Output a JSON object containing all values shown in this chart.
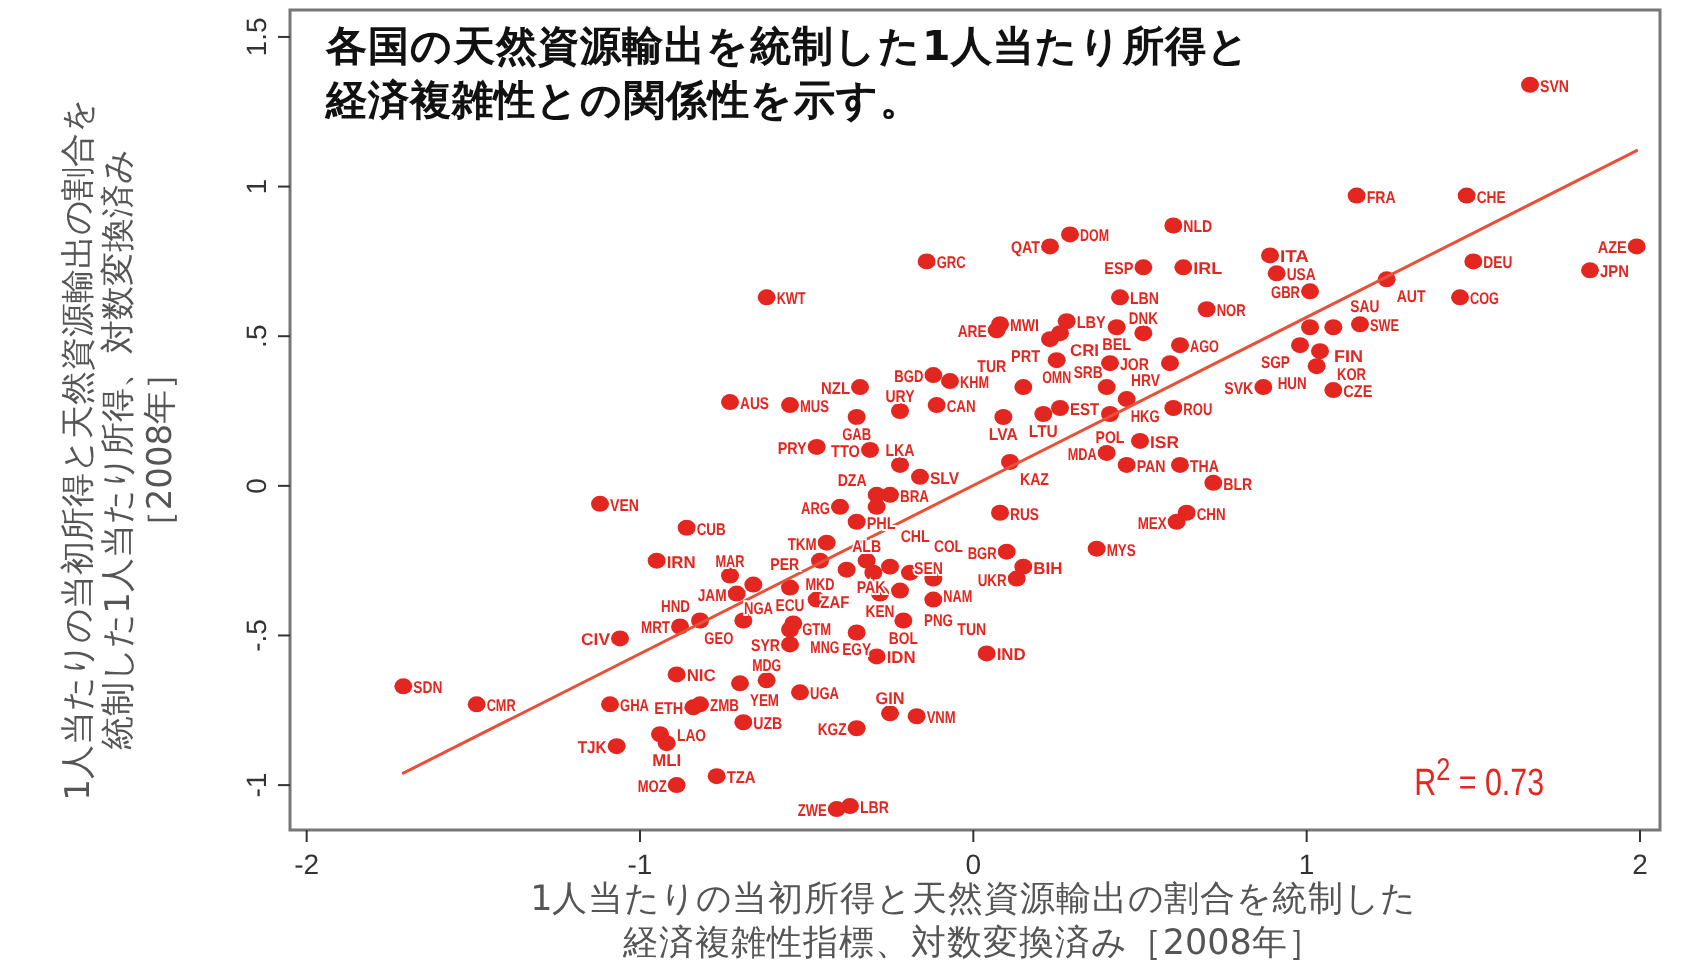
{
  "chart_data": {
    "type": "scatter",
    "title": "各国の天然資源輸出を統制した1人当たり所得と経済複雑性との関係性を示す。",
    "xlabel": "1人当たりの当初所得と天然資源輸出の割合を統制した経済複雑性指標、対数変換済み［2008年］",
    "ylabel": "1人当たりの当初所得と天然資源輸出の割合を統制した1人当たり所得、対数変換済み［2008年］",
    "xlim": [
      -2.05,
      2.06
    ],
    "ylim": [
      -1.15,
      1.59
    ],
    "xticks": [
      -2,
      -1,
      0,
      1,
      2
    ],
    "yticks": [
      -1,
      {
        "value": -0.5,
        "label": "-.5"
      },
      0,
      {
        "value": 0.5,
        "label": ".5"
      },
      1,
      1.5
    ],
    "series": [
      {
        "color": "#e3261f",
        "marker": "circle",
        "x": [
          1.67,
          1.15,
          1.48,
          1.99,
          1.5,
          1.85,
          1.46,
          1.24,
          0.89,
          0.91,
          1.01,
          1.01,
          1.08,
          1.16,
          0.98,
          1.04,
          1.03,
          0.87,
          1.08,
          0.6,
          0.51,
          0.63,
          0.7,
          0.29,
          0.23,
          -0.14,
          -0.62,
          0.44,
          0.28,
          0.43,
          0.51,
          0.26,
          0.08,
          0.07,
          0.23,
          0.25,
          0.41,
          0.62,
          0.59,
          -0.12,
          -0.07,
          -0.34,
          0.15,
          0.4,
          0.46,
          0.6,
          -0.55,
          -0.73,
          -0.11,
          -0.35,
          -0.22,
          0.26,
          0.21,
          0.09,
          0.41,
          0.5,
          0.4,
          0.46,
          0.62,
          0.72,
          0.64,
          0.61,
          0.11,
          0.08,
          0.1,
          0.15,
          0.13,
          0.37,
          0.04,
          -0.47,
          -0.31,
          -0.22,
          -0.16,
          -0.29,
          -0.25,
          -0.4,
          -0.29,
          -0.35,
          -0.44,
          -0.46,
          -0.32,
          -0.3,
          -0.25,
          -0.19,
          -0.38,
          -0.66,
          -0.55,
          -0.47,
          -0.28,
          -0.22,
          -0.12,
          -0.12,
          -0.21,
          -0.54,
          -0.35,
          -0.29,
          -0.55,
          -0.69,
          -0.55,
          -0.62,
          -0.52,
          -0.69,
          -0.25,
          -0.17,
          -0.35,
          -0.77,
          -0.37,
          -0.41,
          -1.12,
          -0.86,
          -0.95,
          -0.73,
          -0.71,
          -0.82,
          -0.88,
          -1.06,
          -1.71,
          -1.49,
          -0.89,
          -1.09,
          -0.84,
          -0.82,
          -0.7,
          -0.94,
          -0.92,
          -1.07,
          -0.89
        ],
        "values": [
          1.34,
          0.97,
          0.97,
          0.8,
          0.75,
          0.72,
          0.63,
          0.69,
          0.77,
          0.71,
          0.65,
          0.53,
          0.53,
          0.54,
          0.47,
          0.45,
          0.4,
          0.33,
          0.32,
          0.87,
          0.73,
          0.73,
          0.59,
          0.84,
          0.8,
          0.75,
          0.63,
          0.63,
          0.55,
          0.53,
          0.51,
          0.51,
          0.54,
          0.52,
          0.49,
          0.42,
          0.41,
          0.47,
          0.41,
          0.37,
          0.35,
          0.33,
          0.33,
          0.33,
          0.29,
          0.26,
          0.27,
          0.28,
          0.27,
          0.23,
          0.25,
          0.26,
          0.24,
          0.23,
          0.24,
          0.15,
          0.11,
          0.07,
          0.07,
          0.01,
          -0.09,
          -0.12,
          0.08,
          -0.09,
          -0.22,
          -0.27,
          -0.31,
          -0.21,
          -0.56,
          0.13,
          0.12,
          0.07,
          0.03,
          -0.03,
          -0.03,
          -0.07,
          -0.07,
          -0.12,
          -0.19,
          -0.25,
          -0.25,
          -0.29,
          -0.27,
          -0.29,
          -0.28,
          -0.33,
          -0.34,
          -0.38,
          -0.36,
          -0.35,
          -0.31,
          -0.38,
          -0.45,
          -0.46,
          -0.49,
          -0.57,
          -0.53,
          -0.45,
          -0.48,
          -0.65,
          -0.69,
          -0.79,
          -0.76,
          -0.77,
          -0.81,
          -0.97,
          -1.07,
          -1.08,
          -0.06,
          -0.14,
          -0.25,
          -0.3,
          -0.36,
          -0.45,
          -0.47,
          -0.51,
          -0.67,
          -0.73,
          -0.63,
          -0.73,
          -0.74,
          -0.73,
          -0.66,
          -0.83,
          -0.86,
          -0.87,
          -1.0
        ]
      },
      {
        "type": "line",
        "color": "#e8503a",
        "x": [
          -1.71,
          1.99
        ],
        "values": [
          -0.96,
          1.12
        ]
      }
    ],
    "annotations": [
      {
        "text": "SVN",
        "x": 1.67,
        "y": 1.34
      },
      {
        "text": "FRA",
        "x": 1.15,
        "y": 0.97
      },
      {
        "text": "CHE",
        "x": 1.48,
        "y": 0.97
      },
      {
        "text": "AZE",
        "x": 1.99,
        "y": 0.8
      },
      {
        "text": "DEU",
        "x": 1.5,
        "y": 0.75
      },
      {
        "text": "JPN",
        "x": 1.85,
        "y": 0.72
      },
      {
        "text": "COG",
        "x": 1.46,
        "y": 0.63
      },
      {
        "text": "AUT",
        "x": 1.24,
        "y": 0.69
      },
      {
        "text": "ITA",
        "x": 0.89,
        "y": 0.77
      },
      {
        "text": "USA",
        "x": 0.91,
        "y": 0.71
      },
      {
        "text": "GBR",
        "x": 1.01,
        "y": 0.65
      },
      {
        "text": "FIN",
        "x": 1.01,
        "y": 0.53
      },
      {
        "text": "SAU",
        "x": 1.08,
        "y": 0.53
      },
      {
        "text": "SWE",
        "x": 1.16,
        "y": 0.54
      },
      {
        "text": "SGP",
        "x": 0.98,
        "y": 0.47
      },
      {
        "text": "KOR",
        "x": 1.04,
        "y": 0.45
      },
      {
        "text": "HUN",
        "x": 1.03,
        "y": 0.4
      },
      {
        "text": "SVK",
        "x": 0.87,
        "y": 0.33
      },
      {
        "text": "CZE",
        "x": 1.08,
        "y": 0.32
      },
      {
        "text": "NLD",
        "x": 0.6,
        "y": 0.87
      },
      {
        "text": "ESP",
        "x": 0.51,
        "y": 0.73
      },
      {
        "text": "IRL",
        "x": 0.63,
        "y": 0.73
      },
      {
        "text": "NOR",
        "x": 0.7,
        "y": 0.59
      },
      {
        "text": "DOM",
        "x": 0.29,
        "y": 0.84
      },
      {
        "text": "QAT",
        "x": 0.23,
        "y": 0.8
      },
      {
        "text": "GRC",
        "x": -0.14,
        "y": 0.75
      },
      {
        "text": "KWT",
        "x": -0.62,
        "y": 0.63
      },
      {
        "text": "LBN",
        "x": 0.44,
        "y": 0.63
      },
      {
        "text": "LBY",
        "x": 0.28,
        "y": 0.55
      },
      {
        "text": "BEL",
        "x": 0.43,
        "y": 0.53
      },
      {
        "text": "DNK",
        "x": 0.51,
        "y": 0.51
      },
      {
        "text": "CRI",
        "x": 0.26,
        "y": 0.51
      },
      {
        "text": "MWI",
        "x": 0.08,
        "y": 0.54
      },
      {
        "text": "ARE",
        "x": 0.07,
        "y": 0.52
      },
      {
        "text": "PRT",
        "x": 0.23,
        "y": 0.49
      },
      {
        "text": "OMN",
        "x": 0.25,
        "y": 0.42
      },
      {
        "text": "JOR",
        "x": 0.41,
        "y": 0.41
      },
      {
        "text": "AGO",
        "x": 0.62,
        "y": 0.47
      },
      {
        "text": "HRV",
        "x": 0.59,
        "y": 0.41
      },
      {
        "text": "BGD",
        "x": -0.12,
        "y": 0.37
      },
      {
        "text": "KHM",
        "x": -0.07,
        "y": 0.35
      },
      {
        "text": "NZL",
        "x": -0.34,
        "y": 0.33
      },
      {
        "text": "TUR",
        "x": 0.15,
        "y": 0.33
      },
      {
        "text": "HKG",
        "x": 0.4,
        "y": 0.33
      },
      {
        "text": "SRB",
        "x": 0.46,
        "y": 0.29
      },
      {
        "text": "ROU",
        "x": 0.6,
        "y": 0.26
      },
      {
        "text": "MUS",
        "x": -0.55,
        "y": 0.27
      },
      {
        "text": "AUS",
        "x": -0.73,
        "y": 0.28
      },
      {
        "text": "CAN",
        "x": -0.11,
        "y": 0.27
      },
      {
        "text": "GAB",
        "x": -0.35,
        "y": 0.23
      },
      {
        "text": "URY",
        "x": -0.22,
        "y": 0.25
      },
      {
        "text": "EST",
        "x": 0.26,
        "y": 0.26
      },
      {
        "text": "LTU",
        "x": 0.21,
        "y": 0.24
      },
      {
        "text": "LVA",
        "x": 0.09,
        "y": 0.23
      },
      {
        "text": "POL",
        "x": 0.41,
        "y": 0.24
      },
      {
        "text": "ISR",
        "x": 0.5,
        "y": 0.15
      },
      {
        "text": "MDA",
        "x": 0.4,
        "y": 0.11
      },
      {
        "text": "PAN",
        "x": 0.46,
        "y": 0.07
      },
      {
        "text": "THA",
        "x": 0.62,
        "y": 0.07
      },
      {
        "text": "BLR",
        "x": 0.72,
        "y": 0.01
      },
      {
        "text": "CHN",
        "x": 0.64,
        "y": -0.09
      },
      {
        "text": "MEX",
        "x": 0.61,
        "y": -0.12
      },
      {
        "text": "KAZ",
        "x": 0.11,
        "y": 0.08
      },
      {
        "text": "RUS",
        "x": 0.08,
        "y": -0.09
      },
      {
        "text": "BGR",
        "x": 0.1,
        "y": -0.22
      },
      {
        "text": "BIH",
        "x": 0.15,
        "y": -0.27
      },
      {
        "text": "UKR",
        "x": 0.13,
        "y": -0.31
      },
      {
        "text": "MYS",
        "x": 0.37,
        "y": -0.21
      },
      {
        "text": "IND",
        "x": 0.04,
        "y": -0.56
      },
      {
        "text": "PRY",
        "x": -0.47,
        "y": 0.13
      },
      {
        "text": "TTO",
        "x": -0.31,
        "y": 0.12
      },
      {
        "text": "LKA",
        "x": -0.22,
        "y": 0.07
      },
      {
        "text": "SLV",
        "x": -0.16,
        "y": 0.03
      },
      {
        "text": "DZA",
        "x": -0.29,
        "y": -0.03
      },
      {
        "text": "BRA",
        "x": -0.25,
        "y": -0.03
      },
      {
        "text": "ARG",
        "x": -0.4,
        "y": -0.07
      },
      {
        "text": "CHL",
        "x": -0.29,
        "y": -0.07
      },
      {
        "text": "PHL",
        "x": -0.35,
        "y": -0.12
      },
      {
        "text": "TKM",
        "x": -0.44,
        "y": -0.19
      },
      {
        "text": "MKD",
        "x": -0.46,
        "y": -0.25
      },
      {
        "text": "ALB",
        "x": -0.32,
        "y": -0.25
      },
      {
        "text": "ZAF",
        "x": -0.3,
        "y": -0.29
      },
      {
        "text": "SEN",
        "x": -0.25,
        "y": -0.27
      },
      {
        "text": "COL",
        "x": -0.19,
        "y": -0.29
      },
      {
        "text": "PAK",
        "x": -0.38,
        "y": -0.28
      },
      {
        "text": "PER",
        "x": -0.66,
        "y": -0.33
      },
      {
        "text": "ECU",
        "x": -0.55,
        "y": -0.34
      },
      {
        "text": "GTM",
        "x": -0.47,
        "y": -0.38
      },
      {
        "text": "KEN",
        "x": -0.28,
        "y": -0.36
      },
      {
        "text": "PNG",
        "x": -0.22,
        "y": -0.35
      },
      {
        "text": "NAM",
        "x": -0.12,
        "y": -0.31
      },
      {
        "text": "TUN",
        "x": -0.12,
        "y": -0.38
      },
      {
        "text": "BOL",
        "x": -0.21,
        "y": -0.45
      },
      {
        "text": "MNG",
        "x": -0.54,
        "y": -0.46
      },
      {
        "text": "EGY",
        "x": -0.35,
        "y": -0.49
      },
      {
        "text": "IDN",
        "x": -0.29,
        "y": -0.57
      },
      {
        "text": "SYR",
        "x": -0.55,
        "y": -0.53
      },
      {
        "text": "GEO",
        "x": -0.69,
        "y": -0.45
      },
      {
        "text": "NGA",
        "x": -0.55,
        "y": -0.48
      },
      {
        "text": "MDG",
        "x": -0.62,
        "y": -0.65
      },
      {
        "text": "UGA",
        "x": -0.52,
        "y": -0.69
      },
      {
        "text": "UZB",
        "x": -0.69,
        "y": -0.79
      },
      {
        "text": "GIN",
        "x": -0.25,
        "y": -0.76
      },
      {
        "text": "VNM",
        "x": -0.17,
        "y": -0.77
      },
      {
        "text": "KGZ",
        "x": -0.35,
        "y": -0.81
      },
      {
        "text": "TZA",
        "x": -0.77,
        "y": -0.97
      },
      {
        "text": "LBR",
        "x": -0.37,
        "y": -1.07
      },
      {
        "text": "ZWE",
        "x": -0.41,
        "y": -1.08
      },
      {
        "text": "VEN",
        "x": -1.12,
        "y": -0.06
      },
      {
        "text": "CUB",
        "x": -0.86,
        "y": -0.14
      },
      {
        "text": "IRN",
        "x": -0.95,
        "y": -0.25
      },
      {
        "text": "MAR",
        "x": -0.73,
        "y": -0.3
      },
      {
        "text": "JAM",
        "x": -0.71,
        "y": -0.36
      },
      {
        "text": "HND",
        "x": -0.82,
        "y": -0.45
      },
      {
        "text": "MRT",
        "x": -0.88,
        "y": -0.47
      },
      {
        "text": "CIV",
        "x": -1.06,
        "y": -0.51
      },
      {
        "text": "SDN",
        "x": -1.71,
        "y": -0.67
      },
      {
        "text": "CMR",
        "x": -1.49,
        "y": -0.73
      },
      {
        "text": "NIC",
        "x": -0.89,
        "y": -0.63
      },
      {
        "text": "GHA",
        "x": -1.09,
        "y": -0.73
      },
      {
        "text": "ETH",
        "x": -0.84,
        "y": -0.74
      },
      {
        "text": "ZMB",
        "x": -0.82,
        "y": -0.73
      },
      {
        "text": "YEM",
        "x": -0.7,
        "y": -0.66
      },
      {
        "text": "LAO",
        "x": -0.94,
        "y": -0.83
      },
      {
        "text": "MLI",
        "x": -0.92,
        "y": -0.86
      },
      {
        "text": "TJK",
        "x": -1.07,
        "y": -0.87
      },
      {
        "text": "MOZ",
        "x": -0.89,
        "y": -1.0
      },
      "R$^{2}$ = 0.73"
    ]
  }
}
